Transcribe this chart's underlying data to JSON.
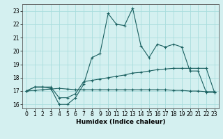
{
  "title": "",
  "xlabel": "Humidex (Indice chaleur)",
  "x_values": [
    0,
    1,
    2,
    3,
    4,
    5,
    6,
    7,
    8,
    9,
    10,
    11,
    12,
    13,
    14,
    15,
    16,
    17,
    18,
    19,
    20,
    21,
    22,
    23
  ],
  "line1_y": [
    17.0,
    17.3,
    17.3,
    17.2,
    16.0,
    16.0,
    16.5,
    17.5,
    19.5,
    19.8,
    22.8,
    22.0,
    21.9,
    23.2,
    20.4,
    19.5,
    20.5,
    20.3,
    20.5,
    20.3,
    18.5,
    18.5,
    16.9,
    16.9
  ],
  "line2_y": [
    17.0,
    17.3,
    17.3,
    17.3,
    16.5,
    16.5,
    16.8,
    17.7,
    17.8,
    17.9,
    18.0,
    18.1,
    18.2,
    18.35,
    18.4,
    18.5,
    18.6,
    18.65,
    18.7,
    18.7,
    18.7,
    18.7,
    18.7,
    16.9
  ],
  "line3_y": [
    17.0,
    17.05,
    17.1,
    17.15,
    17.2,
    17.15,
    17.1,
    17.1,
    17.1,
    17.1,
    17.1,
    17.1,
    17.1,
    17.1,
    17.1,
    17.1,
    17.1,
    17.1,
    17.05,
    17.05,
    17.0,
    17.0,
    16.95,
    16.95
  ],
  "line_color": "#1a6060",
  "bg_color": "#d4f0f0",
  "grid_color": "#aadddd",
  "ylim": [
    15.7,
    23.5
  ],
  "yticks": [
    16,
    17,
    18,
    19,
    20,
    21,
    22,
    23
  ],
  "xlim": [
    -0.5,
    23.5
  ],
  "tick_fontsize": 5.5,
  "xlabel_fontsize": 6.5
}
